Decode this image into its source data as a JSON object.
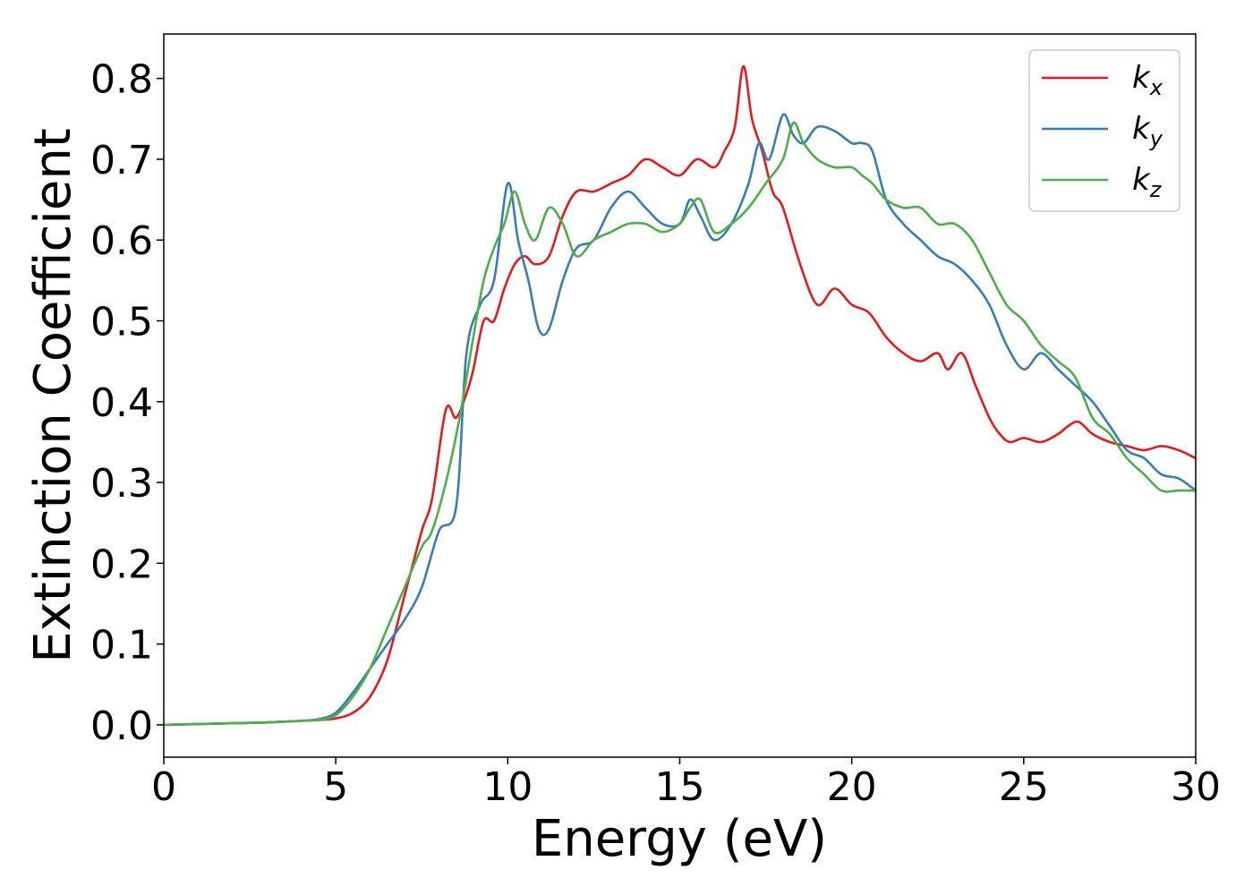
{
  "chart_data": {
    "type": "line",
    "xlabel": "Energy (eV)",
    "ylabel": "Extinction Coefficient",
    "xlim": [
      0,
      30
    ],
    "ylim": [
      -0.04,
      0.855
    ],
    "xticks": [
      0,
      5,
      10,
      15,
      20,
      25,
      30
    ],
    "yticks": [
      0.0,
      0.1,
      0.2,
      0.3,
      0.4,
      0.5,
      0.6,
      0.7,
      0.8
    ],
    "xtick_labels": [
      "0",
      "5",
      "10",
      "15",
      "20",
      "25",
      "30"
    ],
    "ytick_labels": [
      "0.0",
      "0.1",
      "0.2",
      "0.3",
      "0.4",
      "0.5",
      "0.6",
      "0.7",
      "0.8"
    ],
    "grid": false,
    "legend_position": "top-right",
    "series": [
      {
        "name": "kx",
        "base": "k",
        "sub": "x",
        "color": "#e41a1c",
        "x": [
          0,
          1,
          2,
          3,
          4,
          4.5,
          5,
          5.5,
          6,
          6.5,
          7,
          7.5,
          7.8,
          8.2,
          8.5,
          8.8,
          9,
          9.3,
          9.6,
          9.9,
          10.2,
          10.5,
          10.8,
          11.2,
          11.6,
          12,
          12.5,
          13,
          13.5,
          14,
          14.5,
          15,
          15.5,
          16,
          16.3,
          16.6,
          16.85,
          17.1,
          17.4,
          17.7,
          18,
          18.5,
          19,
          19.5,
          20,
          20.5,
          21,
          21.5,
          22,
          22.5,
          22.8,
          23.2,
          23.6,
          24,
          24.3,
          24.6,
          25,
          25.5,
          26,
          26.3,
          26.6,
          27,
          27.5,
          28,
          28.5,
          29,
          29.5,
          30
        ],
        "y": [
          0.0,
          0.001,
          0.002,
          0.003,
          0.005,
          0.006,
          0.008,
          0.015,
          0.035,
          0.08,
          0.16,
          0.24,
          0.28,
          0.39,
          0.38,
          0.41,
          0.44,
          0.5,
          0.5,
          0.54,
          0.57,
          0.58,
          0.57,
          0.58,
          0.63,
          0.66,
          0.66,
          0.67,
          0.68,
          0.7,
          0.69,
          0.68,
          0.7,
          0.69,
          0.71,
          0.74,
          0.815,
          0.75,
          0.71,
          0.66,
          0.64,
          0.57,
          0.52,
          0.54,
          0.52,
          0.51,
          0.48,
          0.46,
          0.45,
          0.46,
          0.44,
          0.46,
          0.42,
          0.38,
          0.36,
          0.35,
          0.355,
          0.35,
          0.36,
          0.37,
          0.375,
          0.36,
          0.35,
          0.345,
          0.34,
          0.345,
          0.34,
          0.33
        ]
      },
      {
        "name": "ky",
        "base": "k",
        "sub": "y",
        "color": "#377eb8",
        "x": [
          0,
          1,
          2,
          3,
          4,
          4.5,
          5,
          5.5,
          6,
          6.5,
          7,
          7.5,
          8,
          8.5,
          8.8,
          9.2,
          9.6,
          10,
          10.3,
          10.6,
          10.9,
          11.2,
          11.6,
          12,
          12.5,
          13,
          13.5,
          14,
          14.5,
          15,
          15.3,
          15.6,
          16,
          16.5,
          17,
          17.3,
          17.6,
          18,
          18.3,
          18.6,
          19,
          19.5,
          20,
          20.3,
          20.6,
          21,
          21.5,
          22,
          22.5,
          23,
          23.5,
          24,
          24.5,
          25,
          25.5,
          26,
          26.5,
          27,
          27.5,
          28,
          28.5,
          29,
          29.5,
          30
        ],
        "y": [
          0.0,
          0.001,
          0.002,
          0.003,
          0.005,
          0.007,
          0.015,
          0.04,
          0.07,
          0.1,
          0.13,
          0.17,
          0.24,
          0.27,
          0.46,
          0.52,
          0.55,
          0.67,
          0.6,
          0.55,
          0.49,
          0.49,
          0.55,
          0.59,
          0.6,
          0.64,
          0.66,
          0.64,
          0.62,
          0.62,
          0.65,
          0.63,
          0.6,
          0.62,
          0.67,
          0.72,
          0.7,
          0.755,
          0.73,
          0.72,
          0.74,
          0.735,
          0.72,
          0.72,
          0.71,
          0.65,
          0.62,
          0.6,
          0.58,
          0.57,
          0.55,
          0.52,
          0.47,
          0.44,
          0.46,
          0.44,
          0.42,
          0.4,
          0.37,
          0.34,
          0.33,
          0.31,
          0.305,
          0.29
        ]
      },
      {
        "name": "kz",
        "base": "k",
        "sub": "z",
        "color": "#4daf4a",
        "x": [
          0,
          1,
          2,
          3,
          4,
          4.5,
          5,
          5.5,
          6,
          6.5,
          7,
          7.5,
          7.8,
          8.2,
          8.6,
          9,
          9.3,
          9.6,
          9.9,
          10.2,
          10.5,
          10.8,
          11.2,
          11.6,
          12,
          12.5,
          13,
          13.5,
          14,
          14.5,
          15,
          15.3,
          15.6,
          16,
          16.5,
          17,
          17.5,
          18,
          18.3,
          18.6,
          19,
          19.5,
          20,
          20.3,
          20.6,
          21,
          21.5,
          22,
          22.5,
          23,
          23.5,
          24,
          24.5,
          25,
          25.5,
          26,
          26.5,
          27,
          27.5,
          28,
          28.5,
          29,
          29.5,
          30
        ],
        "y": [
          0.0,
          0.001,
          0.002,
          0.003,
          0.005,
          0.006,
          0.012,
          0.035,
          0.07,
          0.12,
          0.17,
          0.22,
          0.24,
          0.3,
          0.38,
          0.48,
          0.55,
          0.59,
          0.62,
          0.66,
          0.62,
          0.6,
          0.64,
          0.62,
          0.58,
          0.6,
          0.61,
          0.62,
          0.62,
          0.61,
          0.62,
          0.64,
          0.65,
          0.61,
          0.62,
          0.64,
          0.67,
          0.7,
          0.745,
          0.72,
          0.7,
          0.69,
          0.69,
          0.68,
          0.67,
          0.65,
          0.64,
          0.64,
          0.62,
          0.62,
          0.6,
          0.56,
          0.52,
          0.5,
          0.47,
          0.45,
          0.43,
          0.38,
          0.36,
          0.33,
          0.31,
          0.29,
          0.29,
          0.29
        ]
      }
    ]
  }
}
